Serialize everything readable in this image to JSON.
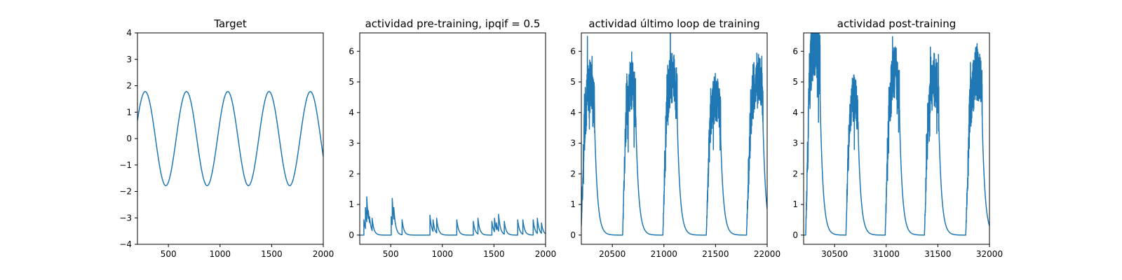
{
  "colors": {
    "series": "#1f77b4",
    "axes": "#000000",
    "background": "#ffffff"
  },
  "chart_data": [
    {
      "type": "line",
      "title": "Target",
      "xlim": [
        200,
        2000
      ],
      "ylim": [
        -4,
        4
      ],
      "xticks": [
        500,
        1000,
        1500,
        2000
      ],
      "yticks": [
        -4,
        -3,
        -2,
        -1,
        0,
        1,
        2,
        3,
        4
      ],
      "series": [
        {
          "kind": "sine",
          "amplitude": 1.78,
          "period": 400,
          "x_start": 200,
          "y_start": 0.68,
          "rising": true,
          "x": [
            200,
            2000
          ]
        }
      ]
    },
    {
      "type": "line",
      "title": "actividad pre-training, ipqif = 0.5",
      "xlim": [
        200,
        2000
      ],
      "ylim": [
        -0.3,
        6.6
      ],
      "xticks": [
        500,
        1000,
        1500,
        2000
      ],
      "yticks": [
        0,
        1,
        2,
        3,
        4,
        5,
        6
      ],
      "series": [
        {
          "kind": "spikes",
          "baseline": 0,
          "decay": 18,
          "spikes": [
            [
              240,
              0.5
            ],
            [
              255,
              0.9
            ],
            [
              268,
              1.25
            ],
            [
              283,
              0.8
            ],
            [
              295,
              0.6
            ],
            [
              320,
              0.55
            ],
            [
              505,
              0.6
            ],
            [
              515,
              1.2
            ],
            [
              530,
              0.9
            ],
            [
              610,
              0.5
            ],
            [
              880,
              0.65
            ],
            [
              910,
              0.5
            ],
            [
              945,
              0.55
            ],
            [
              1140,
              0.5
            ],
            [
              1300,
              0.45
            ],
            [
              1345,
              0.55
            ],
            [
              1480,
              0.45
            ],
            [
              1505,
              0.55
            ],
            [
              1525,
              0.4
            ],
            [
              1545,
              0.68
            ],
            [
              1600,
              0.45
            ],
            [
              1730,
              0.5
            ],
            [
              1780,
              0.5
            ],
            [
              1880,
              0.5
            ],
            [
              1920,
              0.55
            ],
            [
              1960,
              0.4
            ]
          ]
        }
      ]
    },
    {
      "type": "line",
      "title": "actividad último loop de training",
      "xlim": [
        20200,
        22000
      ],
      "ylim": [
        -0.3,
        6.6
      ],
      "xticks": [
        20500,
        21000,
        21500,
        22000
      ],
      "yticks": [
        0,
        1,
        2,
        3,
        4,
        5,
        6
      ],
      "series": [
        {
          "kind": "bursts",
          "baseline": 0,
          "decay": 28,
          "bursts": [
            {
              "start": 20200,
              "end": 20330,
              "peak": 4.9,
              "start_level": 0.3
            },
            {
              "start": 20600,
              "end": 20730,
              "peak": 4.9
            },
            {
              "start": 20990,
              "end": 21130,
              "peak": 5.2
            },
            {
              "start": 21410,
              "end": 21550,
              "peak": 4.5
            },
            {
              "start": 21800,
              "end": 21960,
              "peak": 5.1
            }
          ]
        }
      ]
    },
    {
      "type": "line",
      "title": "actividad post-training",
      "xlim": [
        30200,
        32000
      ],
      "ylim": [
        -0.3,
        6.6
      ],
      "xticks": [
        30500,
        31000,
        31500,
        32000
      ],
      "yticks": [
        0,
        1,
        2,
        3,
        4,
        5,
        6
      ],
      "series": [
        {
          "kind": "bursts",
          "baseline": 0,
          "decay": 28,
          "bursts": [
            {
              "start": 30220,
              "end": 30360,
              "peak": 6.3
            },
            {
              "start": 30610,
              "end": 30730,
              "peak": 4.5
            },
            {
              "start": 30990,
              "end": 31130,
              "peak": 5.3
            },
            {
              "start": 31370,
              "end": 31510,
              "peak": 5.1
            },
            {
              "start": 31770,
              "end": 31930,
              "peak": 5.25
            }
          ]
        }
      ]
    }
  ]
}
